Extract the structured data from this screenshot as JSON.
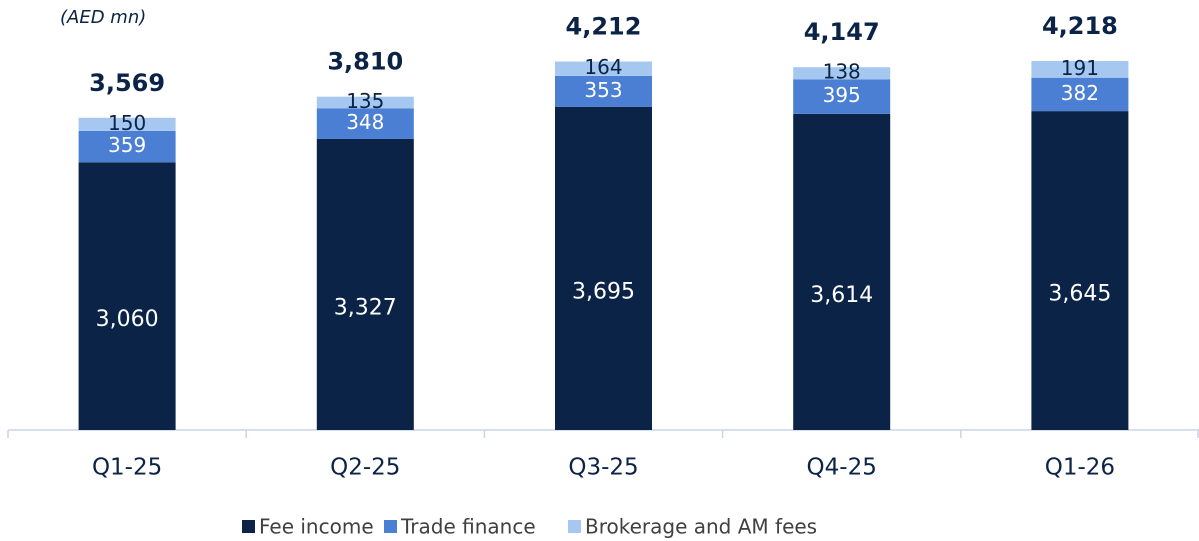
{
  "chart_data": {
    "type": "stacked_bar",
    "unit_label": "(AED mn)",
    "categories": [
      "Q1-25",
      "Q2-25",
      "Q3-25",
      "Q4-25",
      "Q1-26"
    ],
    "series": [
      {
        "name": "Fee income",
        "color": "#0a2346",
        "label_color": "#ffffff",
        "values": [
          3060,
          3327,
          3695,
          3614,
          3645
        ],
        "value_labels": [
          "3,060",
          "3,327",
          "3,695",
          "3,614",
          "3,645"
        ]
      },
      {
        "name": "Trade finance",
        "color": "#4a7fd4",
        "label_color": "#ffffff",
        "values": [
          359,
          348,
          353,
          395,
          382
        ]
      },
      {
        "name": "Brokerage and AM fees",
        "color": "#a6c8f0",
        "label_color": "#0a2346",
        "values": [
          150,
          135,
          164,
          138,
          191
        ]
      }
    ],
    "totals": [
      3569,
      3810,
      4212,
      4147,
      4218
    ],
    "total_labels": [
      "3,569",
      "3,810",
      "4,212",
      "4,147",
      "4,218"
    ],
    "legend": "bottom"
  }
}
